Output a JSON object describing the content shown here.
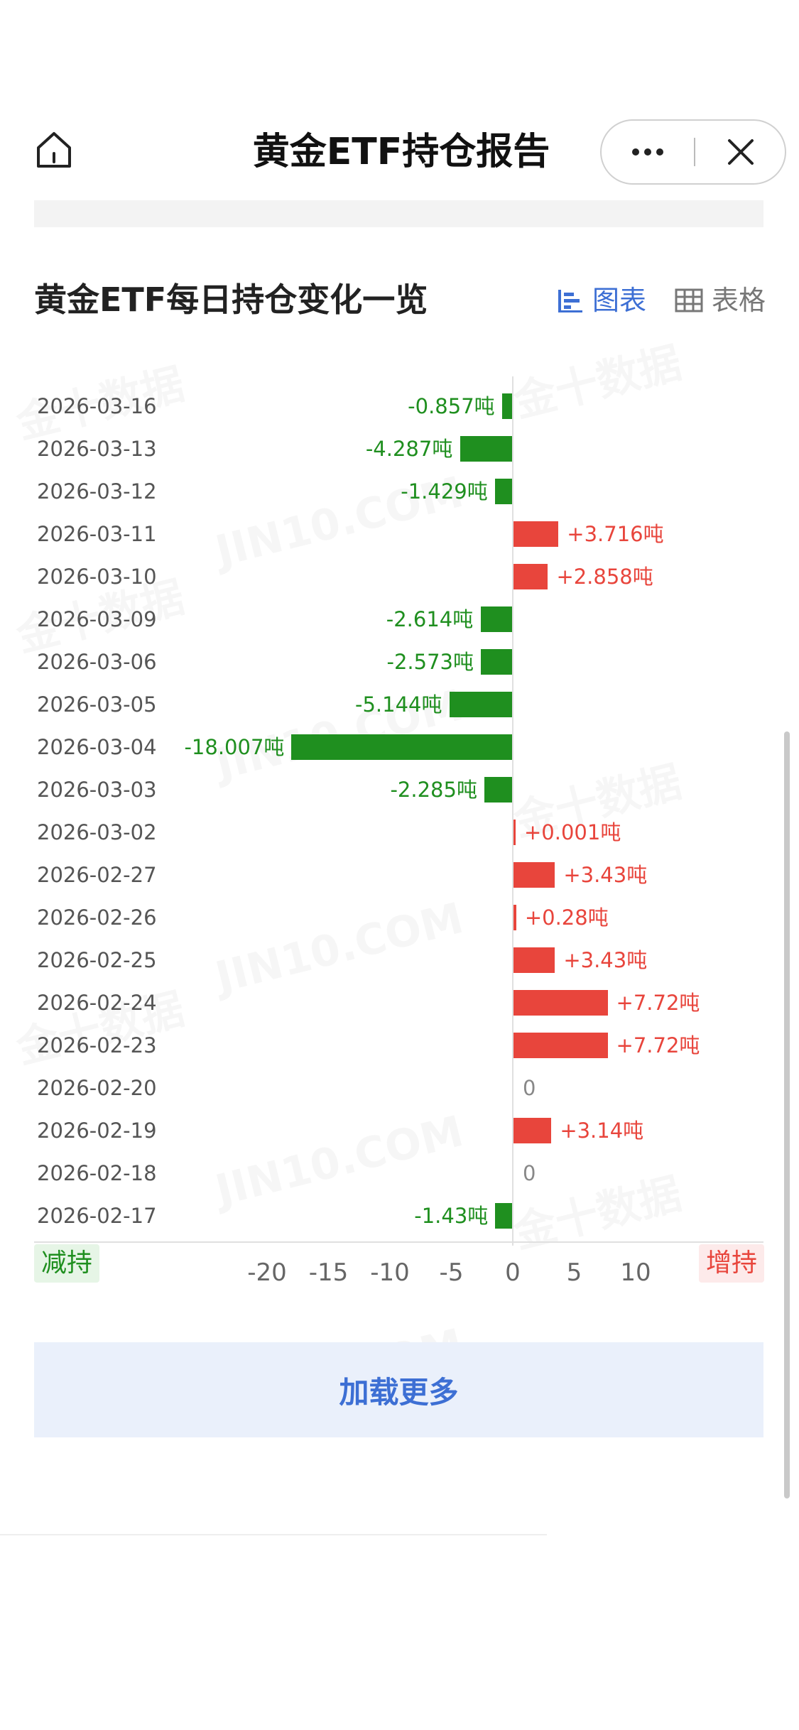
{
  "nav": {
    "title": "黄金ETF持仓报告",
    "more_icon": "more-dots-icon",
    "close_icon": "close-x-icon",
    "home_icon": "home-icon"
  },
  "section": {
    "title": "黄金ETF每日持仓变化一览",
    "tab_chart": "图表",
    "tab_table": "表格",
    "tab_chart_icon": "bar-chart-icon",
    "tab_table_icon": "table-grid-icon"
  },
  "watermark": "金十数据",
  "watermark_domain": "JIN10.COM",
  "legend": {
    "reduce": "减持",
    "increase": "增持"
  },
  "load_more": "加载更多",
  "colors": {
    "decrease": "#1f8f1f",
    "increase": "#e8453c",
    "accent": "#3d6fd4"
  },
  "chart_data": {
    "type": "bar",
    "orientation": "horizontal",
    "categories": [
      "2026-03-16",
      "2026-03-13",
      "2026-03-12",
      "2026-03-11",
      "2026-03-10",
      "2026-03-09",
      "2026-03-06",
      "2026-03-05",
      "2026-03-04",
      "2026-03-03",
      "2026-03-02",
      "2026-02-27",
      "2026-02-26",
      "2026-02-25",
      "2026-02-24",
      "2026-02-23",
      "2026-02-20",
      "2026-02-19",
      "2026-02-18",
      "2026-02-17"
    ],
    "values": [
      -0.857,
      -4.287,
      -1.429,
      3.716,
      2.858,
      -2.614,
      -2.573,
      -5.144,
      -18.007,
      -2.285,
      0.001,
      3.43,
      0.28,
      3.43,
      7.72,
      7.72,
      0,
      3.14,
      0,
      -1.43
    ],
    "labels": [
      "-0.857吨",
      "-4.287吨",
      "-1.429吨",
      "+3.716吨",
      "+2.858吨",
      "-2.614吨",
      "-2.573吨",
      "-5.144吨",
      "-18.007吨",
      "-2.285吨",
      "+0.001吨",
      "+3.43吨",
      "+0.28吨",
      "+3.43吨",
      "+7.72吨",
      "+7.72吨",
      "0",
      "+3.14吨",
      "0",
      "-1.43吨"
    ],
    "x_ticks": [
      "-20",
      "-15",
      "-10",
      "-5",
      "0",
      "5",
      "10"
    ],
    "xlim": [
      -20,
      10
    ],
    "unit": "吨"
  }
}
